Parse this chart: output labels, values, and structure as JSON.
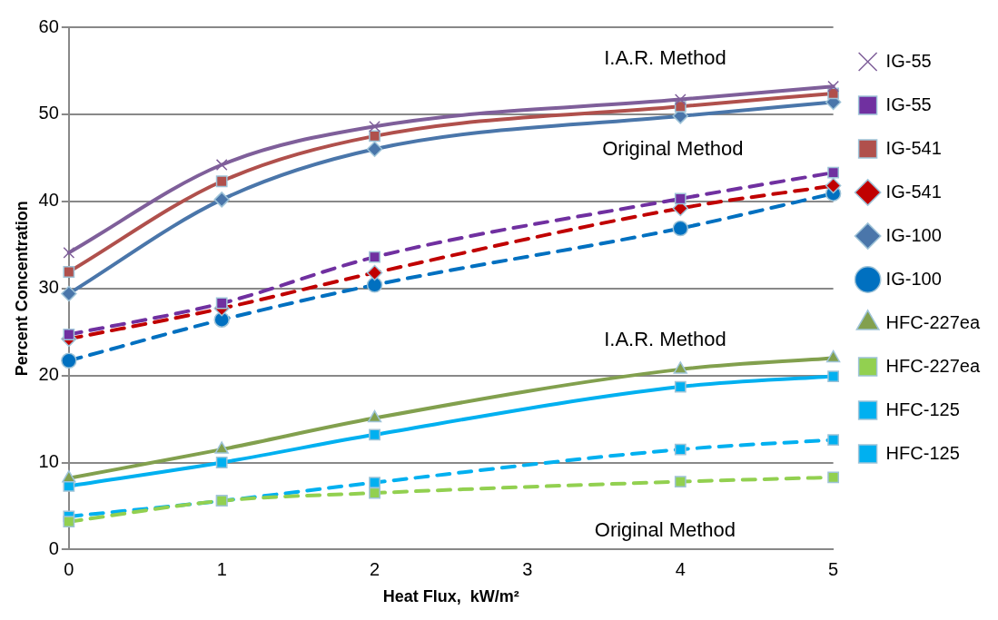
{
  "chart_data": {
    "type": "line",
    "xlabel": "Heat Flux,  kW/m²",
    "ylabel": "Percent Concentration",
    "categories": [
      "0",
      "1",
      "2",
      "3",
      "4",
      "5"
    ],
    "ylim": [
      0,
      60
    ],
    "yticks": [
      0,
      10,
      20,
      30,
      40,
      50,
      60
    ],
    "grid": "y",
    "legend": "right",
    "annotations": [
      "I.A.R. Method",
      "Original Method",
      "I.A.R. Method",
      "Original Method"
    ],
    "series": [
      {
        "name": "IG-55",
        "color": "#7f5f9a",
        "marker": "cross",
        "line_style": "solid",
        "values": [
          34.1,
          44.2,
          48.6,
          null,
          51.7,
          53.2
        ]
      },
      {
        "name": "IG-55",
        "color": "#7030a0",
        "marker": "square",
        "line_style": "dashed",
        "values": [
          24.7,
          28.3,
          33.6,
          null,
          40.3,
          43.3
        ]
      },
      {
        "name": "IG-541",
        "color": "#b0504c",
        "marker": "square",
        "line_style": "solid",
        "values": [
          31.9,
          42.3,
          47.5,
          null,
          50.9,
          52.4
        ]
      },
      {
        "name": "IG-541",
        "color": "#c00000",
        "marker": "diamond",
        "line_style": "dashed",
        "values": [
          24.2,
          27.7,
          31.8,
          null,
          39.2,
          41.8
        ]
      },
      {
        "name": "IG-100",
        "color": "#4a76aa",
        "marker": "diamond",
        "line_style": "solid",
        "values": [
          29.4,
          40.2,
          46.0,
          null,
          49.8,
          51.4
        ]
      },
      {
        "name": "IG-100",
        "color": "#0070c0",
        "marker": "circle",
        "line_style": "dashed",
        "values": [
          21.7,
          26.4,
          30.4,
          null,
          36.9,
          40.9
        ]
      },
      {
        "name": "HFC-227ea",
        "color": "#82a04e",
        "marker": "triangle",
        "line_style": "solid",
        "values": [
          8.2,
          11.5,
          15.1,
          null,
          20.7,
          22.0
        ]
      },
      {
        "name": "HFC-227ea",
        "color": "#92d050",
        "marker": "square",
        "line_style": "dashed",
        "values": [
          3.2,
          5.6,
          6.5,
          null,
          7.8,
          8.3
        ]
      },
      {
        "name": "HFC-125",
        "color": "#00b0f0",
        "marker": "square",
        "line_style": "solid",
        "values": [
          7.3,
          10.0,
          13.2,
          null,
          18.7,
          19.9
        ]
      },
      {
        "name": "HFC-125",
        "color": "#00b0f0",
        "marker": "square",
        "line_style": "dashed",
        "values": [
          3.8,
          5.6,
          7.7,
          null,
          11.5,
          12.6
        ]
      }
    ]
  }
}
